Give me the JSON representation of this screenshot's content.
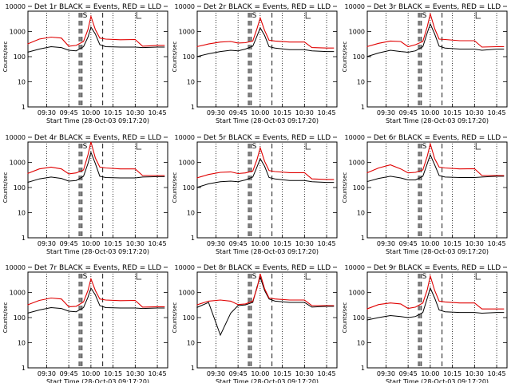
{
  "page": {
    "background": "#ffffff"
  },
  "colors": {
    "events": "#000000",
    "lld": "#e00000"
  },
  "shared": {
    "ylabel": "Counts/sec",
    "xlabel": "Start Time (28-Oct-03 09:17:20)",
    "xtick_labels": [
      "09:30",
      "09:45",
      "10:00",
      "10:15",
      "10:30",
      "10:45"
    ],
    "ytick_labels": [
      "1",
      "10",
      "100",
      "1000",
      "10000"
    ],
    "marker_label": "S",
    "marker_icon": "bracket-marker-icon"
  },
  "chart_data": [
    {
      "type": "line",
      "title": "Det 1r  BLACK = Events, RED = LLD",
      "xlim": [
        "09:17:20",
        "10:52"
      ],
      "ylim": [
        1,
        10000
      ],
      "yscale": "log",
      "x": [
        "09:17",
        "09:25",
        "09:33",
        "09:40",
        "09:45",
        "09:50",
        "09:55",
        "09:58",
        "10:00",
        "10:03",
        "10:06",
        "10:10",
        "10:20",
        "10:30",
        "10:35",
        "10:45",
        "10:50"
      ],
      "series": [
        {
          "name": "Events",
          "values": [
            150,
            200,
            250,
            230,
            180,
            170,
            250,
            600,
            1500,
            800,
            300,
            250,
            240,
            240,
            230,
            240,
            240
          ]
        },
        {
          "name": "LLD",
          "values": [
            320,
            500,
            600,
            550,
            260,
            280,
            400,
            1200,
            4000,
            1200,
            550,
            500,
            470,
            480,
            260,
            280,
            280
          ]
        }
      ]
    },
    {
      "type": "line",
      "title": "Det 2r  BLACK = Events, RED = LLD",
      "xlim": [
        "09:17:20",
        "10:52"
      ],
      "ylim": [
        1,
        10000
      ],
      "yscale": "log",
      "x": [
        "09:17",
        "09:25",
        "09:33",
        "09:40",
        "09:45",
        "09:50",
        "09:55",
        "09:58",
        "10:00",
        "10:03",
        "10:06",
        "10:10",
        "10:20",
        "10:30",
        "10:35",
        "10:45",
        "10:50"
      ],
      "series": [
        {
          "name": "Events",
          "values": [
            100,
            130,
            160,
            180,
            170,
            200,
            260,
            700,
            1400,
            700,
            250,
            220,
            190,
            190,
            170,
            160,
            160
          ]
        },
        {
          "name": "LLD",
          "values": [
            250,
            320,
            380,
            400,
            350,
            360,
            420,
            1400,
            3500,
            1100,
            450,
            420,
            380,
            380,
            230,
            220,
            220
          ]
        }
      ]
    },
    {
      "type": "line",
      "title": "Det 3r  BLACK = Events, RED = LLD",
      "xlim": [
        "09:17:20",
        "10:52"
      ],
      "ylim": [
        1,
        10000
      ],
      "yscale": "log",
      "x": [
        "09:17",
        "09:25",
        "09:33",
        "09:40",
        "09:45",
        "09:50",
        "09:55",
        "09:58",
        "10:00",
        "10:03",
        "10:06",
        "10:10",
        "10:20",
        "10:30",
        "10:35",
        "10:45",
        "10:50"
      ],
      "series": [
        {
          "name": "Events",
          "values": [
            100,
            140,
            180,
            160,
            150,
            170,
            250,
            900,
            2000,
            800,
            260,
            220,
            200,
            200,
            180,
            200,
            200
          ]
        },
        {
          "name": "LLD",
          "values": [
            250,
            340,
            420,
            400,
            250,
            300,
            400,
            1600,
            5000,
            1300,
            500,
            480,
            430,
            430,
            240,
            250,
            250
          ]
        }
      ]
    },
    {
      "type": "line",
      "title": "Det 4r  BLACK = Events, RED = LLD",
      "xlim": [
        "09:17:20",
        "10:52"
      ],
      "ylim": [
        1,
        10000
      ],
      "yscale": "log",
      "x": [
        "09:17",
        "09:25",
        "09:33",
        "09:40",
        "09:45",
        "09:50",
        "09:55",
        "09:58",
        "10:00",
        "10:03",
        "10:06",
        "10:10",
        "10:20",
        "10:30",
        "10:35",
        "10:45",
        "10:50"
      ],
      "series": [
        {
          "name": "Events",
          "values": [
            160,
            220,
            260,
            230,
            180,
            190,
            280,
            900,
            2500,
            900,
            280,
            250,
            240,
            240,
            260,
            270,
            270
          ]
        },
        {
          "name": "LLD",
          "values": [
            360,
            550,
            650,
            550,
            350,
            380,
            500,
            2000,
            6500,
            1500,
            650,
            600,
            550,
            550,
            300,
            300,
            300
          ]
        }
      ]
    },
    {
      "type": "line",
      "title": "Det 5r  BLACK = Events, RED = LLD",
      "xlim": [
        "09:17:20",
        "10:52"
      ],
      "ylim": [
        1,
        10000
      ],
      "yscale": "log",
      "x": [
        "09:17",
        "09:25",
        "09:33",
        "09:40",
        "09:45",
        "09:50",
        "09:55",
        "09:58",
        "10:00",
        "10:03",
        "10:06",
        "10:10",
        "10:20",
        "10:30",
        "10:35",
        "10:45",
        "10:50"
      ],
      "series": [
        {
          "name": "Events",
          "values": [
            100,
            140,
            170,
            180,
            170,
            200,
            260,
            700,
            1400,
            700,
            250,
            220,
            190,
            190,
            170,
            160,
            160
          ]
        },
        {
          "name": "LLD",
          "values": [
            240,
            330,
            400,
            420,
            360,
            380,
            450,
            1400,
            3800,
            1100,
            470,
            430,
            390,
            390,
            220,
            210,
            210
          ]
        }
      ]
    },
    {
      "type": "line",
      "title": "Det 6r  BLACK = Events, RED = LLD",
      "xlim": [
        "09:17:20",
        "10:52"
      ],
      "ylim": [
        1,
        10000
      ],
      "yscale": "log",
      "x": [
        "09:17",
        "09:25",
        "09:33",
        "09:40",
        "09:45",
        "09:50",
        "09:55",
        "09:58",
        "10:00",
        "10:03",
        "10:06",
        "10:10",
        "10:20",
        "10:30",
        "10:35",
        "10:45",
        "10:50"
      ],
      "series": [
        {
          "name": "Events",
          "values": [
            170,
            230,
            280,
            240,
            200,
            200,
            280,
            900,
            2000,
            800,
            300,
            260,
            250,
            250,
            260,
            280,
            280
          ]
        },
        {
          "name": "LLD",
          "values": [
            380,
            600,
            800,
            550,
            380,
            400,
            500,
            1800,
            5500,
            1400,
            650,
            600,
            550,
            560,
            300,
            300,
            300
          ]
        }
      ]
    },
    {
      "type": "line",
      "title": "Det 7r  BLACK = Events, RED = LLD",
      "xlim": [
        "09:17:20",
        "10:52"
      ],
      "ylim": [
        1,
        10000
      ],
      "yscale": "log",
      "x": [
        "09:17",
        "09:25",
        "09:33",
        "09:40",
        "09:45",
        "09:50",
        "09:55",
        "09:58",
        "10:00",
        "10:03",
        "10:06",
        "10:10",
        "10:20",
        "10:30",
        "10:35",
        "10:45",
        "10:50"
      ],
      "series": [
        {
          "name": "Events",
          "values": [
            150,
            200,
            250,
            230,
            180,
            170,
            250,
            650,
            1500,
            800,
            300,
            250,
            240,
            240,
            230,
            240,
            240
          ]
        },
        {
          "name": "LLD",
          "values": [
            320,
            480,
            600,
            550,
            270,
            280,
            420,
            1200,
            3500,
            1200,
            550,
            500,
            470,
            480,
            260,
            270,
            270
          ]
        }
      ]
    },
    {
      "type": "line",
      "title": "Det 8r  BLACK = Events, RED = LLD",
      "xlim": [
        "09:17:20",
        "10:52"
      ],
      "ylim": [
        1,
        10000
      ],
      "yscale": "log",
      "x": [
        "09:17",
        "09:25",
        "09:33",
        "09:40",
        "09:45",
        "09:50",
        "09:55",
        "09:58",
        "10:00",
        "10:03",
        "10:06",
        "10:10",
        "10:20",
        "10:30",
        "10:35",
        "10:45",
        "10:50"
      ],
      "series": [
        {
          "name": "Events",
          "values": [
            250,
            400,
            20,
            150,
            300,
            320,
            400,
            1800,
            4000,
            1200,
            550,
            450,
            400,
            400,
            260,
            280,
            280
          ]
        },
        {
          "name": "LLD",
          "values": [
            320,
            450,
            500,
            450,
            330,
            350,
            450,
            1600,
            5500,
            1400,
            600,
            550,
            500,
            500,
            300,
            300,
            300
          ]
        }
      ]
    },
    {
      "type": "line",
      "title": "Det 9r  BLACK = Events, RED = LLD",
      "xlim": [
        "09:17:20",
        "10:52"
      ],
      "ylim": [
        1,
        10000
      ],
      "yscale": "log",
      "x": [
        "09:17",
        "09:25",
        "09:33",
        "09:40",
        "09:45",
        "09:50",
        "09:55",
        "09:58",
        "10:00",
        "10:03",
        "10:06",
        "10:10",
        "10:20",
        "10:30",
        "10:35",
        "10:45",
        "10:50"
      ],
      "series": [
        {
          "name": "Events",
          "values": [
            80,
            100,
            120,
            110,
            100,
            110,
            160,
            600,
            1500,
            600,
            200,
            170,
            160,
            160,
            150,
            160,
            160
          ]
        },
        {
          "name": "LLD",
          "values": [
            220,
            330,
            380,
            350,
            230,
            260,
            380,
            1300,
            4500,
            1200,
            450,
            420,
            380,
            380,
            220,
            220,
            220
          ]
        }
      ]
    }
  ]
}
